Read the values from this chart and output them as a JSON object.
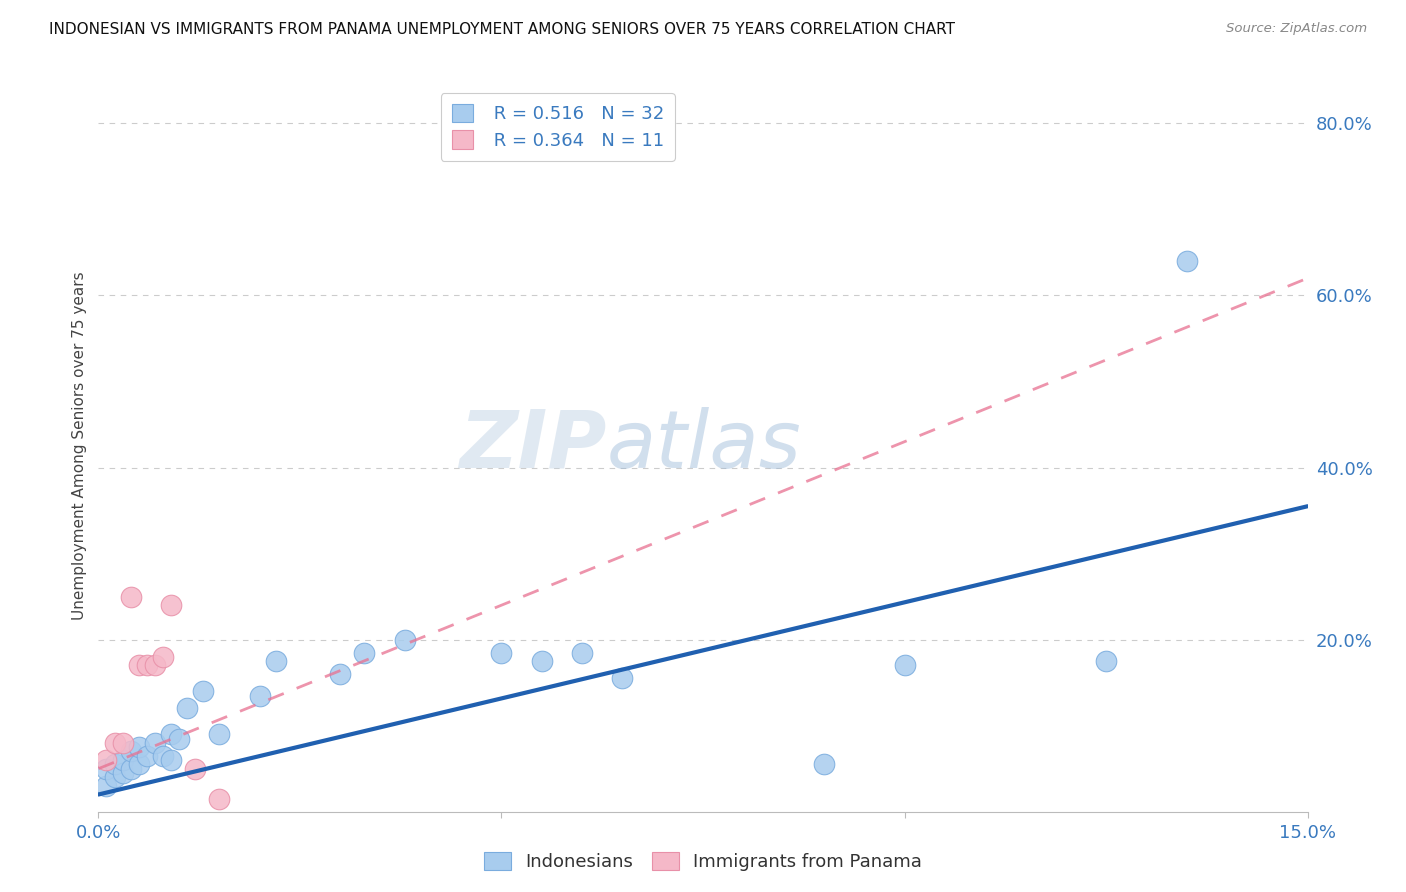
{
  "title": "INDONESIAN VS IMMIGRANTS FROM PANAMA UNEMPLOYMENT AMONG SENIORS OVER 75 YEARS CORRELATION CHART",
  "source": "Source: ZipAtlas.com",
  "ylabel": "Unemployment Among Seniors over 75 years",
  "xlim": [
    0.0,
    0.15
  ],
  "ylim": [
    0.0,
    0.85
  ],
  "indonesian_x": [
    0.001,
    0.001,
    0.002,
    0.002,
    0.003,
    0.003,
    0.004,
    0.004,
    0.005,
    0.005,
    0.006,
    0.007,
    0.008,
    0.009,
    0.009,
    0.01,
    0.011,
    0.013,
    0.015,
    0.02,
    0.022,
    0.03,
    0.033,
    0.038,
    0.05,
    0.055,
    0.06,
    0.065,
    0.09,
    0.1,
    0.125,
    0.135
  ],
  "indonesian_y": [
    0.03,
    0.05,
    0.04,
    0.055,
    0.045,
    0.06,
    0.05,
    0.07,
    0.055,
    0.075,
    0.065,
    0.08,
    0.065,
    0.06,
    0.09,
    0.085,
    0.12,
    0.14,
    0.09,
    0.135,
    0.175,
    0.16,
    0.185,
    0.2,
    0.185,
    0.175,
    0.185,
    0.155,
    0.055,
    0.17,
    0.175,
    0.64
  ],
  "panama_x": [
    0.001,
    0.002,
    0.003,
    0.004,
    0.005,
    0.006,
    0.007,
    0.008,
    0.009,
    0.012,
    0.015
  ],
  "panama_y": [
    0.06,
    0.08,
    0.08,
    0.25,
    0.17,
    0.17,
    0.17,
    0.18,
    0.24,
    0.05,
    0.015
  ],
  "indonesian_line_x": [
    0.0,
    0.15
  ],
  "indonesian_line_y": [
    0.02,
    0.355
  ],
  "panama_line_x": [
    0.0,
    0.15
  ],
  "panama_line_y": [
    0.05,
    0.62
  ],
  "indonesian_color": "#a8ccee",
  "indonesian_edge_color": "#7aacde",
  "panama_color": "#f5b8c8",
  "panama_edge_color": "#e890a8",
  "indonesian_line_color": "#2060b0",
  "panama_line_color": "#e87090",
  "R_indonesian": 0.516,
  "N_indonesian": 32,
  "R_panama": 0.364,
  "N_panama": 11,
  "legend_label_indonesian": "Indonesians",
  "legend_label_panama": "Immigrants from Panama",
  "watermark_zip": "ZIP",
  "watermark_atlas": "atlas",
  "background_color": "#ffffff",
  "grid_color": "#cccccc"
}
